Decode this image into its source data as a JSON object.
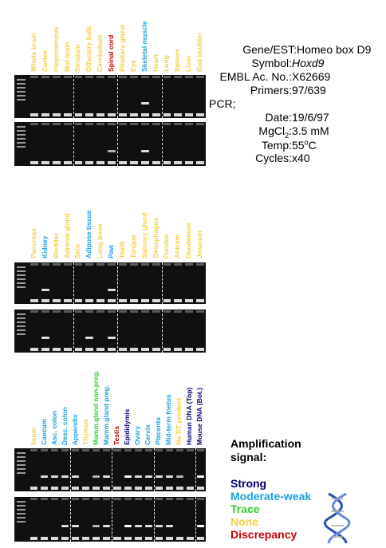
{
  "colors": {
    "strong": "#00007a",
    "moderate": "#1aa0e8",
    "trace": "#33cc33",
    "none": "#f4d03f",
    "discrepancy": "#cc0000"
  },
  "panels": [
    {
      "lanes": [
        {
          "label": "Whole brain",
          "class": "none"
        },
        {
          "label": "Cortex",
          "class": "none"
        },
        {
          "label": "Hippocampus",
          "class": "none"
        },
        {
          "label": "Mid brain",
          "class": "none"
        },
        {
          "label": "Striatum",
          "class": "none"
        },
        {
          "label": "Olfactory bulb",
          "class": "none"
        },
        {
          "label": "Cerebellum",
          "class": "none"
        },
        {
          "label": "Spinal cord",
          "class": "discrepancy"
        },
        {
          "label": "Pituitary gland",
          "class": "none"
        },
        {
          "label": "Eye",
          "class": "none"
        },
        {
          "label": "Skeletal muscle",
          "class": "moderate"
        },
        {
          "label": "Heart",
          "class": "none"
        },
        {
          "label": "Lung",
          "class": "none"
        },
        {
          "label": "Spleen",
          "class": "none"
        },
        {
          "label": "Liver",
          "class": "none"
        },
        {
          "label": "Gall bladder",
          "class": "none"
        }
      ],
      "gel1_bands": [
        10
      ],
      "gel2_bands": [
        7,
        10
      ]
    },
    {
      "lanes": [
        {
          "label": "Pancreas",
          "class": "none"
        },
        {
          "label": "Kidney",
          "class": "moderate"
        },
        {
          "label": "Bladder",
          "class": "none"
        },
        {
          "label": "Adrenal gland",
          "class": "none"
        },
        {
          "label": "Skin",
          "class": "none"
        },
        {
          "label": "Adipose tissue",
          "class": "moderate"
        },
        {
          "label": "Long bone",
          "class": "none"
        },
        {
          "label": "Paw",
          "class": "moderate"
        },
        {
          "label": "Teeth",
          "class": "none"
        },
        {
          "label": "Tongue",
          "class": "none"
        },
        {
          "label": "Salivary gland",
          "class": "none"
        },
        {
          "label": "Oesophagus",
          "class": "none"
        },
        {
          "label": "Fundus",
          "class": "none"
        },
        {
          "label": "Antrum",
          "class": "none"
        },
        {
          "label": "Duodenum",
          "class": "none"
        },
        {
          "label": "Jejunum",
          "class": "none"
        }
      ],
      "gel1_bands": [
        1,
        7
      ],
      "gel2_bands": [
        1,
        5,
        7
      ]
    },
    {
      "lanes": [
        {
          "label": "Ileum",
          "class": "none"
        },
        {
          "label": "Caecum",
          "class": "moderate"
        },
        {
          "label": "Asc. colon",
          "class": "moderate"
        },
        {
          "label": "Desc. colon",
          "class": "moderate"
        },
        {
          "label": "Appendix",
          "class": "moderate"
        },
        {
          "label": "Thymus",
          "class": "none"
        },
        {
          "label": "Mamm.gland non-preg.",
          "class": "trace"
        },
        {
          "label": "Mamm.gland preg.",
          "class": "moderate"
        },
        {
          "label": "Testis",
          "class": "discrepancy"
        },
        {
          "label": "Epididymis",
          "class": "strong"
        },
        {
          "label": "Ovary",
          "class": "moderate"
        },
        {
          "label": "Cervix",
          "class": "moderate"
        },
        {
          "label": "Placenta",
          "class": "moderate"
        },
        {
          "label": "Mid-term foetus",
          "class": "moderate"
        },
        {
          "label": "No RT product",
          "class": "none"
        },
        {
          "label": "Human DNA (Top)",
          "class": "strong"
        },
        {
          "label": "Mouse DNA (Bot.)",
          "class": "strong"
        }
      ],
      "gel1_bands": [
        1,
        2,
        3,
        4,
        6,
        7,
        9,
        10,
        11,
        12,
        13,
        14,
        16
      ],
      "gel2_bands": [
        3,
        4,
        6,
        7,
        9,
        10,
        11,
        12,
        13,
        16
      ]
    }
  ],
  "info": {
    "gene_label": "Gene/EST:",
    "gene_value": "Homeo box D9",
    "symbol_label": "Symbol:",
    "symbol_value": "Hoxd9",
    "embl_label": "EMBL Ac. No.:",
    "embl_value": "X62669",
    "primers_label": "Primers:",
    "primers_value": "97/639",
    "pcr_label": "PCR;",
    "date_label": "Date:",
    "date_value": "19/6/97",
    "mgcl_label_main": "MgCl",
    "mgcl_label_sub": "2",
    "mgcl_label_colon": ":",
    "mgcl_value": "3.5 mM",
    "temp_label": "Temp:",
    "temp_value_num": "55",
    "temp_value_sup": "o",
    "temp_value_unit": "C",
    "cycles_label": "Cycles:",
    "cycles_value": "x40"
  },
  "legend": {
    "title_line1": "Amplification",
    "title_line2": "signal:",
    "strong": "Strong",
    "moderate": "Moderate-weak",
    "trace": "Trace",
    "none": "None",
    "discrepancy": "Discrepancy"
  }
}
